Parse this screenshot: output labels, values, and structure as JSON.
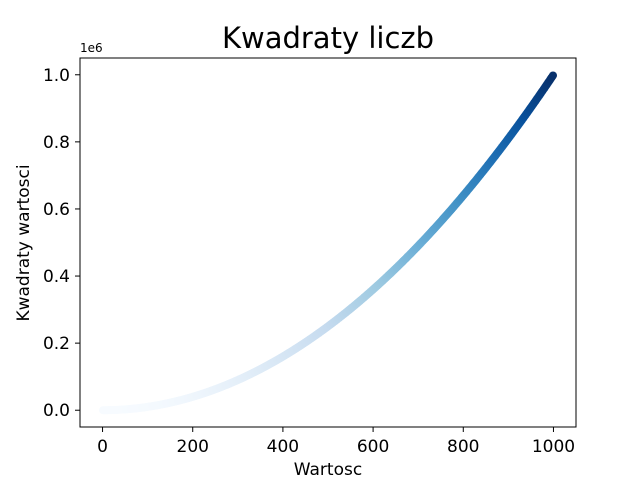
{
  "chart_data": {
    "type": "scatter",
    "title": "Kwadraty liczb",
    "xlabel": "Wartosc",
    "ylabel": "Kwadraty wartosci",
    "x_range": [
      1,
      1000
    ],
    "y_formula": "x^2",
    "colormap": "Blues",
    "colormap_stops": [
      "#f7fbff",
      "#deebf7",
      "#c6dbef",
      "#9ecae1",
      "#6baed6",
      "#4292c6",
      "#2171b5",
      "#08519c",
      "#08306b"
    ],
    "xlim": [
      -50,
      1050
    ],
    "ylim": [
      -50000,
      1050000
    ],
    "x_ticks": [
      0,
      200,
      400,
      600,
      800,
      1000
    ],
    "x_tick_labels": [
      "0",
      "200",
      "400",
      "600",
      "800",
      "1000"
    ],
    "y_ticks": [
      0,
      200000,
      400000,
      600000,
      800000,
      1000000
    ],
    "y_tick_labels": [
      "0.0",
      "0.2",
      "0.4",
      "0.6",
      "0.8",
      "1.0"
    ],
    "y_offset_label": "1e6",
    "grid": false,
    "legend": "none"
  }
}
